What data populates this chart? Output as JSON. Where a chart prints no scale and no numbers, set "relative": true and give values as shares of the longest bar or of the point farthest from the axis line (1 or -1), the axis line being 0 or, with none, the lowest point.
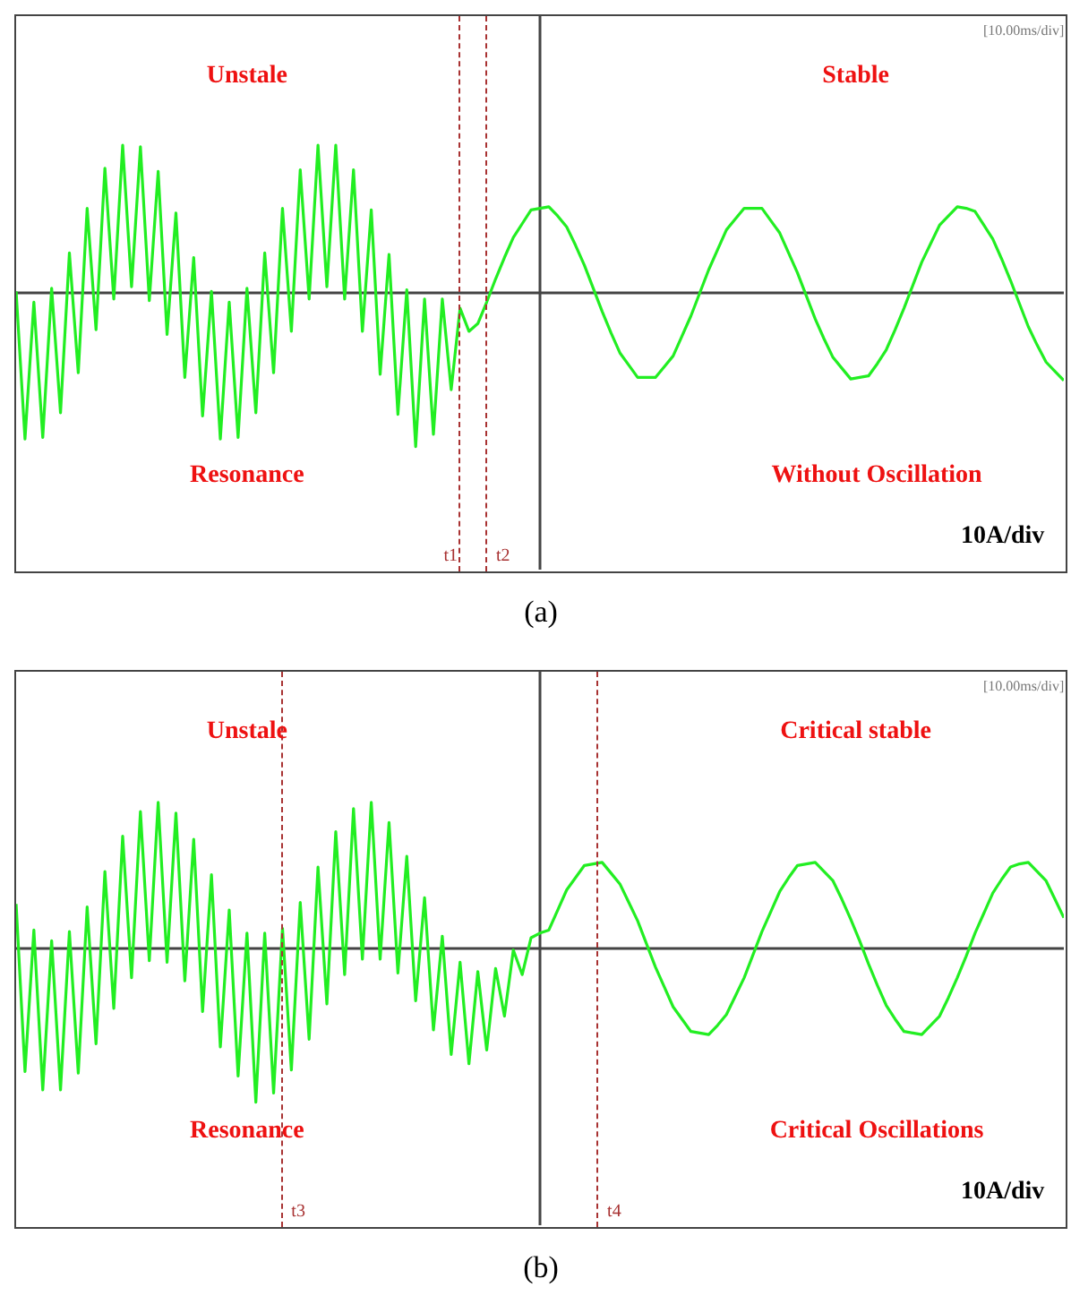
{
  "chart_data": [
    {
      "type": "line",
      "title": "(a)",
      "relative": true,
      "marker": "none",
      "line_style": "solid",
      "categories": [
        null,
        null,
        null,
        null,
        null,
        null,
        null,
        null,
        null,
        null,
        null,
        null,
        null,
        null,
        null,
        null,
        null,
        null,
        null,
        null,
        null,
        null,
        null,
        null,
        null,
        null,
        null,
        null,
        null,
        null,
        null,
        null,
        null,
        null,
        null,
        null,
        null,
        null,
        null,
        null,
        null,
        null,
        null,
        null,
        null,
        null,
        null,
        null,
        null,
        null,
        null,
        null,
        null,
        null,
        null,
        null,
        null,
        null,
        null,
        null,
        null,
        null,
        null,
        null,
        null,
        null,
        null,
        null,
        null,
        null,
        null,
        null,
        null,
        null,
        null,
        null,
        null,
        null,
        null,
        null,
        null,
        null,
        null,
        null,
        null,
        null,
        null,
        null,
        null,
        null,
        null,
        null,
        null,
        null,
        null,
        null,
        null,
        null,
        null,
        null,
        null,
        null,
        null,
        null,
        null,
        null,
        null,
        null,
        null,
        null,
        null,
        null,
        null,
        null,
        null,
        null,
        null,
        null,
        null
      ],
      "series": [
        {
          "color": "#22ee22",
          "values": [
            0.01,
            -0.95,
            -0.06,
            -0.94,
            0.03,
            -0.78,
            0.26,
            -0.52,
            0.55,
            -0.24,
            0.81,
            -0.04,
            0.96,
            0.04,
            0.95,
            -0.05,
            0.79,
            -0.27,
            0.52,
            -0.55,
            0.23,
            -0.8,
            0.01,
            -0.95,
            -0.06,
            -0.94,
            0.03,
            -0.78,
            0.26,
            -0.52,
            0.55,
            -0.25,
            0.8,
            -0.04,
            0.96,
            0.04,
            0.96,
            -0.04,
            0.8,
            -0.25,
            0.54,
            -0.53,
            0.25,
            -0.79,
            0.02,
            -1,
            -0.04,
            -0.92,
            -0.04,
            -0.63,
            -0.1,
            -0.25,
            -0.2,
            -0.06,
            0.09,
            0.23,
            0.36,
            0.45,
            0.54,
            0.55,
            0.56,
            0.5,
            0.43,
            0.31,
            0.18,
            0.03,
            -0.12,
            -0.26,
            -0.39,
            -0.47,
            -0.55,
            -0.55,
            -0.55,
            -0.48,
            -0.41,
            -0.28,
            -0.15,
            0,
            0.15,
            0.28,
            0.41,
            0.48,
            0.55,
            0.55,
            0.55,
            0.47,
            0.39,
            0.26,
            0.13,
            -0.02,
            -0.17,
            -0.3,
            -0.42,
            -0.49,
            -0.56,
            -0.55,
            -0.54,
            -0.46,
            -0.37,
            -0.24,
            -0.1,
            0.05,
            0.2,
            0.32,
            0.44,
            0.5,
            0.56,
            0.55,
            0.53,
            0.44,
            0.35,
            0.22,
            0.08,
            -0.07,
            -0.22,
            -0.34,
            -0.45,
            -0.51,
            -0.57
          ]
        }
      ],
      "annotations": [
        "Unstale",
        "Stable",
        "Resonance",
        "Without Oscillation",
        "10A/div",
        "[10.00ms/div]",
        "t1",
        "t2"
      ]
    },
    {
      "type": "line",
      "title": "(b)",
      "relative": true,
      "marker": "none",
      "line_style": "solid",
      "categories": [
        null,
        null,
        null,
        null,
        null,
        null,
        null,
        null,
        null,
        null,
        null,
        null,
        null,
        null,
        null,
        null,
        null,
        null,
        null,
        null,
        null,
        null,
        null,
        null,
        null,
        null,
        null,
        null,
        null,
        null,
        null,
        null,
        null,
        null,
        null,
        null,
        null,
        null,
        null,
        null,
        null,
        null,
        null,
        null,
        null,
        null,
        null,
        null,
        null,
        null,
        null,
        null,
        null,
        null,
        null,
        null,
        null,
        null,
        null,
        null,
        null,
        null,
        null,
        null,
        null,
        null,
        null,
        null,
        null,
        null,
        null,
        null,
        null,
        null,
        null,
        null,
        null,
        null,
        null,
        null,
        null,
        null,
        null,
        null,
        null,
        null,
        null,
        null,
        null,
        null,
        null,
        null,
        null,
        null,
        null,
        null,
        null,
        null,
        null,
        null,
        null,
        null,
        null,
        null,
        null,
        null,
        null,
        null,
        null,
        null,
        null,
        null,
        null,
        null,
        null,
        null,
        null,
        null,
        null
      ],
      "series": [
        {
          "color": "#22ee22",
          "values": [
            0.29,
            -0.8,
            0.12,
            -0.92,
            0.05,
            -0.92,
            0.11,
            -0.81,
            0.27,
            -0.62,
            0.5,
            -0.39,
            0.73,
            -0.19,
            0.89,
            -0.08,
            0.95,
            -0.09,
            0.88,
            -0.21,
            0.71,
            -0.41,
            0.48,
            -0.64,
            0.25,
            -0.83,
            0.1,
            -1,
            0.1,
            -0.94,
            0.13,
            -0.79,
            0.3,
            -0.59,
            0.53,
            -0.36,
            0.76,
            -0.17,
            0.91,
            -0.07,
            0.95,
            -0.07,
            0.82,
            -0.16,
            0.6,
            -0.34,
            0.33,
            -0.53,
            0.08,
            -0.69,
            -0.09,
            -0.75,
            -0.15,
            -0.66,
            -0.13,
            -0.44,
            -0.01,
            -0.17,
            0.07,
            0.1,
            0.12,
            0.25,
            0.38,
            0.46,
            0.54,
            0.55,
            0.56,
            0.49,
            0.42,
            0.3,
            0.18,
            0.03,
            -0.12,
            -0.25,
            -0.38,
            -0.46,
            -0.54,
            -0.55,
            -0.56,
            -0.5,
            -0.43,
            -0.31,
            -0.19,
            -0.04,
            0.11,
            0.24,
            0.37,
            0.46,
            0.54,
            0.55,
            0.56,
            0.5,
            0.44,
            0.32,
            0.19,
            0.05,
            -0.1,
            -0.24,
            -0.37,
            -0.46,
            -0.54,
            -0.55,
            -0.56,
            -0.5,
            -0.44,
            -0.32,
            -0.19,
            -0.05,
            0.1,
            0.23,
            0.36,
            0.45,
            0.53,
            0.55,
            0.56,
            0.5,
            0.44,
            0.32,
            0.2
          ]
        }
      ],
      "annotations": [
        "Unstale",
        "Critical stable",
        "Resonance",
        "Critical Oscillations",
        "10A/div",
        "[10.00ms/div]",
        "t3",
        "t4"
      ]
    }
  ]
}
